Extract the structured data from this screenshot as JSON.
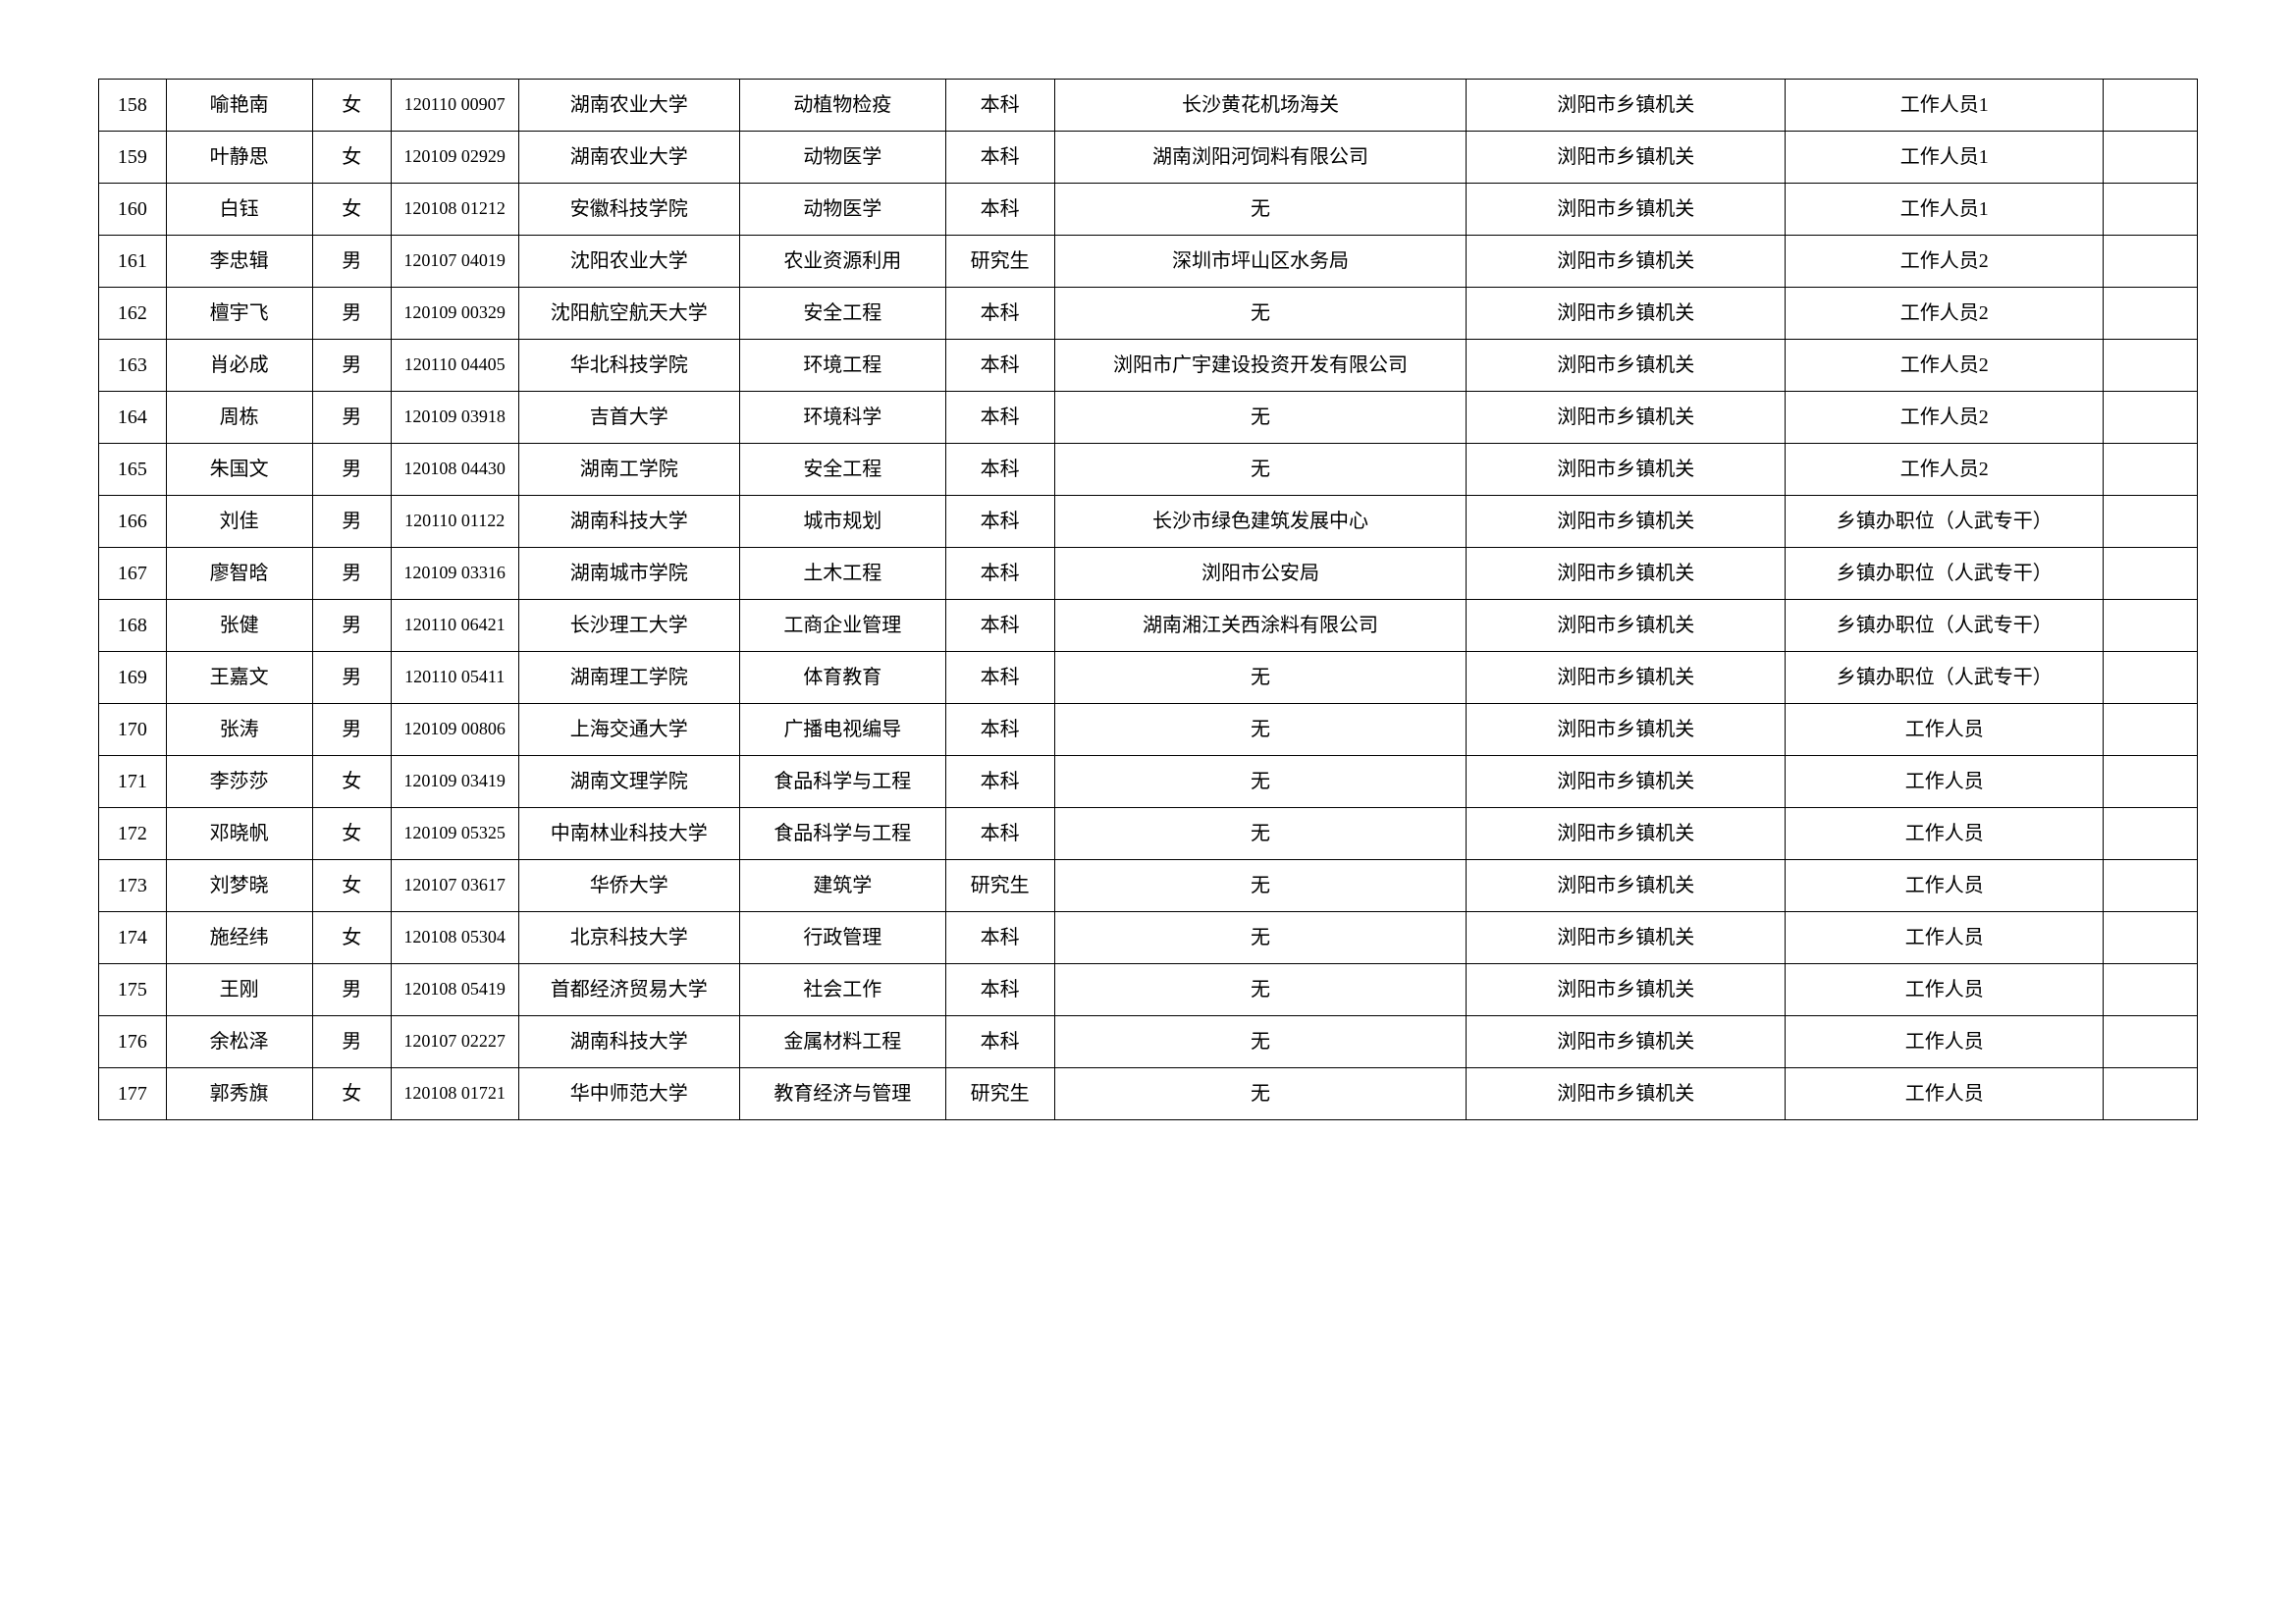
{
  "table": {
    "columns": [
      {
        "key": "idx",
        "class": "col-idx"
      },
      {
        "key": "name",
        "class": "col-name"
      },
      {
        "key": "gender",
        "class": "col-gender"
      },
      {
        "key": "id",
        "class": "col-id"
      },
      {
        "key": "school",
        "class": "col-school"
      },
      {
        "key": "major",
        "class": "col-major"
      },
      {
        "key": "degree",
        "class": "col-degree"
      },
      {
        "key": "employer",
        "class": "col-employer"
      },
      {
        "key": "unit",
        "class": "col-unit"
      },
      {
        "key": "position",
        "class": "col-position"
      },
      {
        "key": "note",
        "class": "col-note"
      }
    ],
    "rows": [
      {
        "idx": "158",
        "name": "喻艳南",
        "gender": "女",
        "id": "120110 00907",
        "school": "湖南农业大学",
        "major": "动植物检疫",
        "degree": "本科",
        "employer": "长沙黄花机场海关",
        "unit": "浏阳市乡镇机关",
        "position": "工作人员1",
        "note": ""
      },
      {
        "idx": "159",
        "name": "叶静思",
        "gender": "女",
        "id": "120109 02929",
        "school": "湖南农业大学",
        "major": "动物医学",
        "degree": "本科",
        "employer": "湖南浏阳河饲料有限公司",
        "unit": "浏阳市乡镇机关",
        "position": "工作人员1",
        "note": ""
      },
      {
        "idx": "160",
        "name": "白钰",
        "gender": "女",
        "id": "120108 01212",
        "school": "安徽科技学院",
        "major": "动物医学",
        "degree": "本科",
        "employer": "无",
        "unit": "浏阳市乡镇机关",
        "position": "工作人员1",
        "note": ""
      },
      {
        "idx": "161",
        "name": "李忠辑",
        "gender": "男",
        "id": "120107 04019",
        "school": "沈阳农业大学",
        "major": "农业资源利用",
        "degree": "研究生",
        "employer": "深圳市坪山区水务局",
        "unit": "浏阳市乡镇机关",
        "position": "工作人员2",
        "note": ""
      },
      {
        "idx": "162",
        "name": "檀宇飞",
        "gender": "男",
        "id": "120109 00329",
        "school": "沈阳航空航天大学",
        "major": "安全工程",
        "degree": "本科",
        "employer": "无",
        "unit": "浏阳市乡镇机关",
        "position": "工作人员2",
        "note": ""
      },
      {
        "idx": "163",
        "name": "肖必成",
        "gender": "男",
        "id": "120110 04405",
        "school": "华北科技学院",
        "major": "环境工程",
        "degree": "本科",
        "employer": "浏阳市广宇建设投资开发有限公司",
        "unit": "浏阳市乡镇机关",
        "position": "工作人员2",
        "note": ""
      },
      {
        "idx": "164",
        "name": "周栋",
        "gender": "男",
        "id": "120109 03918",
        "school": "吉首大学",
        "major": "环境科学",
        "degree": "本科",
        "employer": "无",
        "unit": "浏阳市乡镇机关",
        "position": "工作人员2",
        "note": ""
      },
      {
        "idx": "165",
        "name": "朱国文",
        "gender": "男",
        "id": "120108 04430",
        "school": "湖南工学院",
        "major": "安全工程",
        "degree": "本科",
        "employer": "无",
        "unit": "浏阳市乡镇机关",
        "position": "工作人员2",
        "note": ""
      },
      {
        "idx": "166",
        "name": "刘佳",
        "gender": "男",
        "id": "120110 01122",
        "school": "湖南科技大学",
        "major": "城市规划",
        "degree": "本科",
        "employer": "长沙市绿色建筑发展中心",
        "unit": "浏阳市乡镇机关",
        "position": "乡镇办职位（人武专干）",
        "note": ""
      },
      {
        "idx": "167",
        "name": "廖智晗",
        "gender": "男",
        "id": "120109 03316",
        "school": "湖南城市学院",
        "major": "土木工程",
        "degree": "本科",
        "employer": "浏阳市公安局",
        "unit": "浏阳市乡镇机关",
        "position": "乡镇办职位（人武专干）",
        "note": ""
      },
      {
        "idx": "168",
        "name": "张健",
        "gender": "男",
        "id": "120110 06421",
        "school": "长沙理工大学",
        "major": "工商企业管理",
        "degree": "本科",
        "employer": "湖南湘江关西涂料有限公司",
        "unit": "浏阳市乡镇机关",
        "position": "乡镇办职位（人武专干）",
        "note": ""
      },
      {
        "idx": "169",
        "name": "王嘉文",
        "gender": "男",
        "id": "120110 05411",
        "school": "湖南理工学院",
        "major": "体育教育",
        "degree": "本科",
        "employer": "无",
        "unit": "浏阳市乡镇机关",
        "position": "乡镇办职位（人武专干）",
        "note": ""
      },
      {
        "idx": "170",
        "name": "张涛",
        "gender": "男",
        "id": "120109 00806",
        "school": "上海交通大学",
        "major": "广播电视编导",
        "degree": "本科",
        "employer": "无",
        "unit": "浏阳市乡镇机关",
        "position": "工作人员",
        "note": ""
      },
      {
        "idx": "171",
        "name": "李莎莎",
        "gender": "女",
        "id": "120109 03419",
        "school": "湖南文理学院",
        "major": "食品科学与工程",
        "degree": "本科",
        "employer": "无",
        "unit": "浏阳市乡镇机关",
        "position": "工作人员",
        "note": ""
      },
      {
        "idx": "172",
        "name": "邓晓帆",
        "gender": "女",
        "id": "120109 05325",
        "school": "中南林业科技大学",
        "major": "食品科学与工程",
        "degree": "本科",
        "employer": "无",
        "unit": "浏阳市乡镇机关",
        "position": "工作人员",
        "note": ""
      },
      {
        "idx": "173",
        "name": "刘梦晓",
        "gender": "女",
        "id": "120107 03617",
        "school": "华侨大学",
        "major": "建筑学",
        "degree": "研究生",
        "employer": "无",
        "unit": "浏阳市乡镇机关",
        "position": "工作人员",
        "note": ""
      },
      {
        "idx": "174",
        "name": "施经纬",
        "gender": "女",
        "id": "120108 05304",
        "school": "北京科技大学",
        "major": "行政管理",
        "degree": "本科",
        "employer": "无",
        "unit": "浏阳市乡镇机关",
        "position": "工作人员",
        "note": ""
      },
      {
        "idx": "175",
        "name": "王刚",
        "gender": "男",
        "id": "120108 05419",
        "school": "首都经济贸易大学",
        "major": "社会工作",
        "degree": "本科",
        "employer": "无",
        "unit": "浏阳市乡镇机关",
        "position": "工作人员",
        "note": ""
      },
      {
        "idx": "176",
        "name": "余松泽",
        "gender": "男",
        "id": "120107 02227",
        "school": "湖南科技大学",
        "major": "金属材料工程",
        "degree": "本科",
        "employer": "无",
        "unit": "浏阳市乡镇机关",
        "position": "工作人员",
        "note": ""
      },
      {
        "idx": "177",
        "name": "郭秀旗",
        "gender": "女",
        "id": "120108 01721",
        "school": "华中师范大学",
        "major": "教育经济与管理",
        "degree": "研究生",
        "employer": "无",
        "unit": "浏阳市乡镇机关",
        "position": "工作人员",
        "note": ""
      }
    ],
    "border_color": "#000000",
    "text_color": "#000000",
    "background_color": "#ffffff",
    "cell_fontsize": 20,
    "id_fontsize": 18
  }
}
